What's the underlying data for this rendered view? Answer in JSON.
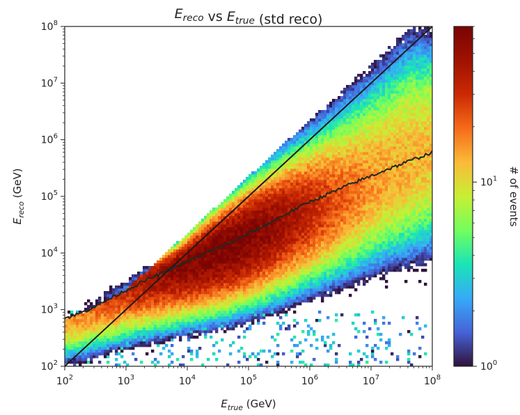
{
  "chart_data": {
    "type": "heatmap",
    "title": {
      "parts": [
        {
          "base": "E",
          "sub": "reco"
        },
        {
          "text": " vs "
        },
        {
          "base": "E",
          "sub": "true"
        },
        {
          "text": " (std reco)"
        }
      ]
    },
    "xlabel": {
      "base": "E",
      "sub": "true",
      "suffix": " (GeV)"
    },
    "ylabel": {
      "base": "E",
      "sub": "reco",
      "suffix": " (GeV)"
    },
    "x_scale": "log",
    "y_scale": "log",
    "xlim": [
      100,
      100000000
    ],
    "ylim": [
      100,
      100000000
    ],
    "x_ticks": [
      {
        "base": "10",
        "exp": "2",
        "value": 100
      },
      {
        "base": "10",
        "exp": "3",
        "value": 1000
      },
      {
        "base": "10",
        "exp": "4",
        "value": 10000
      },
      {
        "base": "10",
        "exp": "5",
        "value": 100000
      },
      {
        "base": "10",
        "exp": "6",
        "value": 1000000
      },
      {
        "base": "10",
        "exp": "7",
        "value": 10000000
      },
      {
        "base": "10",
        "exp": "8",
        "value": 100000000
      }
    ],
    "y_ticks": [
      {
        "base": "10",
        "exp": "2",
        "value": 100
      },
      {
        "base": "10",
        "exp": "3",
        "value": 1000
      },
      {
        "base": "10",
        "exp": "4",
        "value": 10000
      },
      {
        "base": "10",
        "exp": "5",
        "value": 100000
      },
      {
        "base": "10",
        "exp": "6",
        "value": 1000000
      },
      {
        "base": "10",
        "exp": "7",
        "value": 10000000
      },
      {
        "base": "10",
        "exp": "8",
        "value": 100000000
      }
    ],
    "colorbar": {
      "label": "# of events",
      "scale": "log",
      "range": [
        1,
        70
      ],
      "colormap": "turbo",
      "ticks": [
        {
          "base": "10",
          "exp": "0",
          "value": 1
        },
        {
          "base": "10",
          "exp": "1",
          "value": 10
        }
      ]
    },
    "reference_line": {
      "label": "",
      "points": [
        [
          100,
          100
        ],
        [
          100000000,
          100000000
        ]
      ],
      "color": "#1a1a1a"
    },
    "median_curve": {
      "color": "#1f2a1f",
      "x": [
        100,
        200,
        500,
        1000,
        2000,
        5000,
        10000,
        20000,
        50000,
        100000,
        200000,
        500000,
        1000000,
        2000000,
        5000000,
        10000000,
        20000000,
        50000000,
        100000000
      ],
      "y": [
        700,
        900,
        1500,
        2200,
        3200,
        5000,
        7000,
        10000,
        15000,
        22000,
        32000,
        55000,
        80000,
        110000,
        170000,
        230000,
        310000,
        450000,
        600000
      ]
    },
    "distribution": {
      "band_width_low": 0.9,
      "band_width_high": 2.0,
      "peak_at": [
        30000,
        15000
      ],
      "peak_counts": 70,
      "sparse_floor_events": "Scattered events near E_reco ~ 10^2 to 10^3 across all E_true"
    }
  }
}
